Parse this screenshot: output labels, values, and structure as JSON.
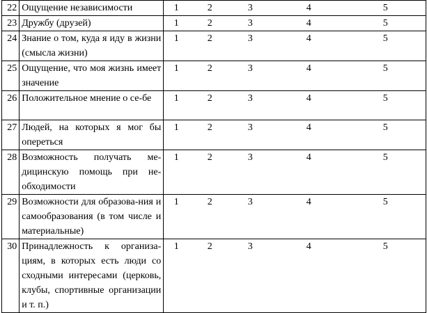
{
  "rows": [
    {
      "num": "22",
      "text": "Ощущение независимости",
      "scale": [
        "1",
        "2",
        "3",
        "4",
        "5"
      ]
    },
    {
      "num": "23",
      "text": "Дружбу (друзей)",
      "scale": [
        "1",
        "2",
        "3",
        "4",
        "5"
      ]
    },
    {
      "num": "24",
      "text": "Знание о том, куда я иду в жизни (смысла жизни)",
      "scale": [
        "1",
        "2",
        "3",
        "4",
        "5"
      ]
    },
    {
      "num": "25",
      "text": "Ощущение, что моя жизнь имеет значение",
      "scale": [
        "1",
        "2",
        "3",
        "4",
        "5"
      ]
    },
    {
      "num": "26",
      "text": "Положительное мнение о се-бе",
      "scale": [
        "1",
        "2",
        "3",
        "4",
        "5"
      ]
    },
    {
      "num": "27",
      "text": "Людей, на которых я мог бы опереться",
      "scale": [
        "1",
        "2",
        "3",
        "4",
        "5"
      ]
    },
    {
      "num": "28",
      "text": "Возможность получать ме-дицинскую помощь при не-обходимости",
      "scale": [
        "1",
        "2",
        "3",
        "4",
        "5"
      ]
    },
    {
      "num": "29",
      "text": "Возможности для образова-ния и самообразования (в том числе и материальные)",
      "scale": [
        "1",
        "2",
        "3",
        "4",
        "5"
      ]
    },
    {
      "num": "30",
      "text": "Принадлежность к организа-циям, в которых есть люди со сходными интересами (церковь, клубы, спортивные организации и т. п.)",
      "scale": [
        "1",
        "2",
        "3",
        "4",
        "5"
      ]
    }
  ]
}
